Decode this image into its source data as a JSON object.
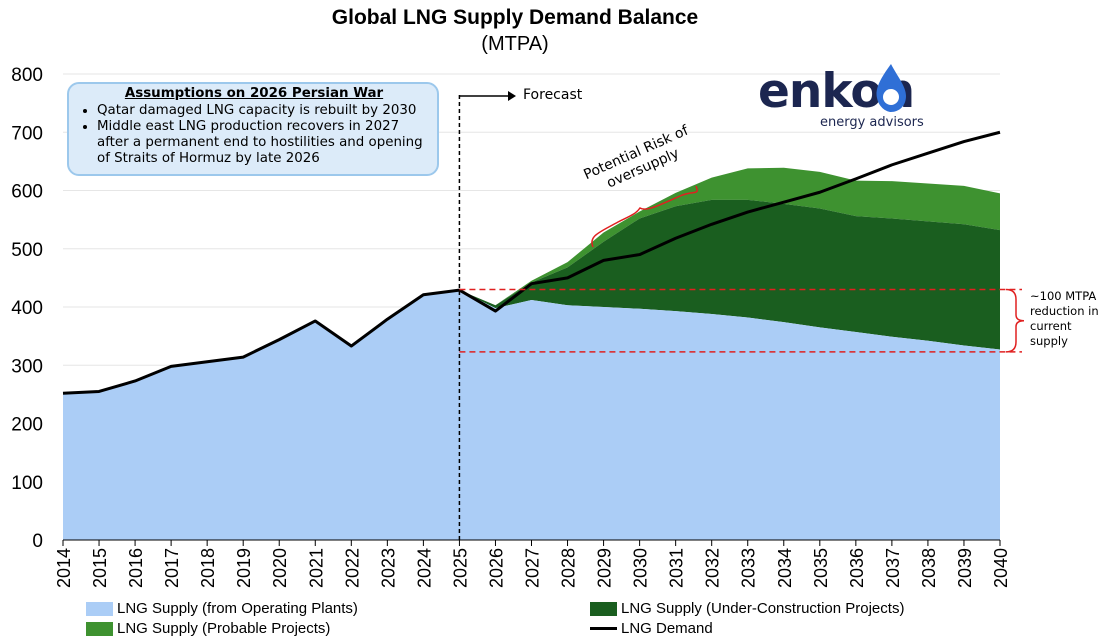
{
  "title": "Global LNG Supply Demand Balance",
  "subtitle": "(MTPA)",
  "assumptions": {
    "heading": "Assumptions on 2026 Persian War",
    "bullets": [
      "Qatar damaged LNG capacity is rebuilt by 2030",
      "Middle east LNG production recovers in 2027 after a permanent end to hostilities and opening of Straits of Hormuz by late 2026"
    ]
  },
  "logo": {
    "word": "enkon",
    "tagline": "energy advisors"
  },
  "annotations": {
    "forecast": "Forecast",
    "risk_line1": "Potential Risk of",
    "risk_line2": "oversupply",
    "reduction": "~100 MTPA reduction in current supply"
  },
  "colors": {
    "operating": "#abcdf6",
    "under_construction": "#1a5e1f",
    "probable": "#3e9230",
    "demand": "#000000",
    "annotation_red": "#e02020",
    "box_fill": "#dcebf9",
    "box_border": "#9cc8ec",
    "logo_navy": "#1c2650",
    "logo_blue": "#2f6fd6"
  },
  "legend": [
    {
      "label": "LNG Supply (from Operating Plants)",
      "color": "#abcdf6",
      "kind": "area"
    },
    {
      "label": "LNG Supply (Under-Construction Projects)",
      "color": "#1a5e1f",
      "kind": "area"
    },
    {
      "label": "LNG Supply (Probable Projects)",
      "color": "#3e9230",
      "kind": "area"
    },
    {
      "label": "LNG Demand",
      "color": "#000000",
      "kind": "line"
    }
  ],
  "chart_data": {
    "type": "area",
    "title": "Global LNG Supply Demand Balance",
    "subtitle": "(MTPA)",
    "x": [
      2014,
      2015,
      2016,
      2017,
      2018,
      2019,
      2020,
      2021,
      2022,
      2023,
      2024,
      2025,
      2026,
      2027,
      2028,
      2029,
      2030,
      2031,
      2032,
      2033,
      2034,
      2035,
      2036,
      2037,
      2038,
      2039,
      2040
    ],
    "ylim": [
      0,
      800
    ],
    "yticks": [
      0,
      100,
      200,
      300,
      400,
      500,
      600,
      700,
      800
    ],
    "grid": true,
    "stacked": true,
    "forecast_start": 2025,
    "series": [
      {
        "name": "LNG Supply (from Operating Plants)",
        "type": "area",
        "values": [
          252,
          255,
          273,
          298,
          306,
          314,
          344,
          376,
          333,
          379,
          421,
          429,
          398,
          412,
          403,
          400,
          397,
          393,
          388,
          382,
          374,
          365,
          357,
          349,
          342,
          334,
          327
        ]
      },
      {
        "name": "LNG Supply (Under-Construction Projects)",
        "type": "area",
        "values": [
          0,
          0,
          0,
          0,
          0,
          0,
          0,
          0,
          0,
          0,
          0,
          0,
          5,
          30,
          65,
          112,
          155,
          180,
          196,
          202,
          203,
          204,
          199,
          203,
          205,
          208,
          205
        ]
      },
      {
        "name": "LNG Supply (Probable Projects)",
        "type": "area",
        "values": [
          0,
          0,
          0,
          0,
          0,
          0,
          0,
          0,
          0,
          0,
          0,
          0,
          0,
          3,
          9,
          16,
          12,
          23,
          38,
          54,
          62,
          63,
          61,
          64,
          65,
          66,
          63
        ]
      },
      {
        "name": "LNG Demand",
        "type": "line",
        "values": [
          252,
          255,
          273,
          298,
          306,
          314,
          344,
          376,
          333,
          379,
          421,
          429,
          393,
          440,
          450,
          480,
          490,
          518,
          542,
          563,
          580,
          597,
          620,
          644,
          664,
          684,
          700
        ]
      }
    ],
    "reference_lines": [
      430,
      323
    ]
  }
}
